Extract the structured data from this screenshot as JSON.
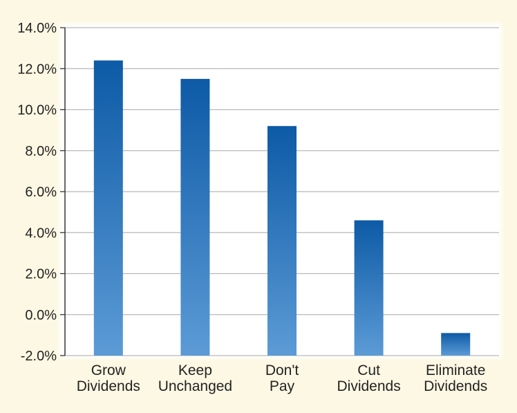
{
  "chart_data": {
    "type": "bar",
    "title": "",
    "xlabel": "",
    "ylabel": "",
    "categories": [
      [
        "Grow",
        "Dividends"
      ],
      [
        "Keep",
        "Unchanged"
      ],
      [
        "Don't",
        "Pay"
      ],
      [
        "Cut",
        "Dividends"
      ],
      [
        "Eliminate",
        "Dividends"
      ]
    ],
    "values": [
      12.4,
      11.5,
      9.2,
      4.6,
      -0.9
    ],
    "ylim": [
      -2.0,
      14.0
    ],
    "yticks": [
      -2.0,
      0.0,
      2.0,
      4.0,
      6.0,
      8.0,
      10.0,
      12.0,
      14.0
    ],
    "ytick_labels": [
      "-2.0%",
      "0.0%",
      "2.0%",
      "4.0%",
      "6.0%",
      "8.0%",
      "10.0%",
      "12.0%",
      "14.0%"
    ],
    "grid": true,
    "legend": "none",
    "colors": {
      "background": "#fdf8e3",
      "plot_area": "#ffffff",
      "grid": "#b8b8b8",
      "bar_top": "#0d5aa6",
      "bar_bottom": "#5c9bd6",
      "text": "#222222"
    }
  }
}
